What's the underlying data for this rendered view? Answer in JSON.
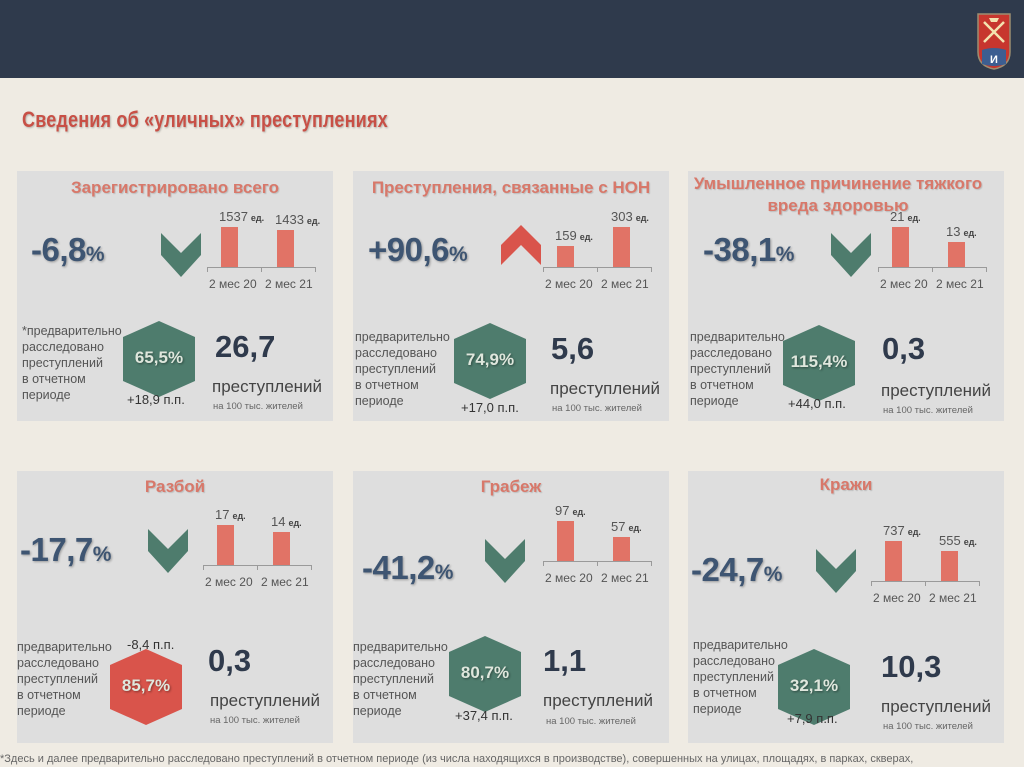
{
  "title": "Сведения об «уличных» преступлениях",
  "common": {
    "cat1": "2 мес 20",
    "cat2": "2 мес 21",
    "unit": "ед.",
    "crimes_word": "преступлений",
    "per_label": "на 100 тыс. жителей"
  },
  "colors": {
    "teal": "#4e7c6d",
    "red": "#d9544b",
    "bar": "#e17366",
    "header": "#2f3a4c",
    "title": "#c85046"
  },
  "cards": [
    {
      "heading": "Зарегистрировано всего",
      "change": "-6,8",
      "change_unit": "%",
      "direction": "down",
      "v1": 1537,
      "v1_label": "1537",
      "v2": 1433,
      "v2_label": "1433",
      "note": "*предварительно\nрасследовано\nпреступлений\nв отчетном\nпериоде",
      "solved_pct": "65,5%",
      "solved_color": "teal",
      "solved_pp": "+18,9 п.п.",
      "rate": "26,7"
    },
    {
      "heading": "Преступления, связанные с НОН",
      "change": "+90,6",
      "change_unit": "%",
      "direction": "up",
      "v1": 159,
      "v1_label": "159",
      "v2": 303,
      "v2_label": "303",
      "note": "предварительно\nрасследовано\nпреступлений\nв отчетном\nпериоде",
      "solved_pct": "74,9%",
      "solved_color": "teal",
      "solved_pp": "+17,0 п.п.",
      "rate": "5,6"
    },
    {
      "heading": "Умышленное причинение тяжкого вреда здоровью",
      "change": "-38,1",
      "change_unit": "%",
      "direction": "down",
      "v1": 21,
      "v1_label": "21",
      "v2": 13,
      "v2_label": "13",
      "note": "предварительно\nрасследовано\nпреступлений\nв отчетном\nпериоде",
      "solved_pct": "115,4%",
      "solved_color": "teal",
      "solved_pp": "+44,0 п.п.",
      "rate": "0,3"
    },
    {
      "heading": "Разбой",
      "change": "-17,7",
      "change_unit": "%",
      "direction": "down",
      "v1": 17,
      "v1_label": "17",
      "v2": 14,
      "v2_label": "14",
      "note": "предварительно\nрасследовано\nпреступлений\nв отчетном\nпериоде",
      "solved_pct": "85,7%",
      "solved_color": "red",
      "solved_pp": "-8,4 п.п.",
      "rate": "0,3"
    },
    {
      "heading": "Грабеж",
      "change": "-41,2",
      "change_unit": "%",
      "direction": "down",
      "v1": 97,
      "v1_label": "97",
      "v2": 57,
      "v2_label": "57",
      "note": "предварительно\nрасследовано\nпреступлений\nв отчетном\nпериоде",
      "solved_pct": "80,7%",
      "solved_color": "teal",
      "solved_pp": "+37,4 п.п.",
      "rate": "1,1"
    },
    {
      "heading": "Кражи",
      "change": "-24,7",
      "change_unit": "%",
      "direction": "down",
      "v1": 737,
      "v1_label": "737",
      "v2": 555,
      "v2_label": "555",
      "note": "предварительно\nрасследовано\nпреступлений\nв отчетном\nпериоде",
      "solved_pct": "32,1%",
      "solved_color": "teal",
      "solved_pp": "+7,9 п.п.",
      "rate": "10,3"
    }
  ],
  "footnote": "*Здесь и далее предварительно расследовано преступлений в отчетном периоде (из числа находящихся в производстве), совершенных на улицах, площадях, в парках, скверах,"
}
